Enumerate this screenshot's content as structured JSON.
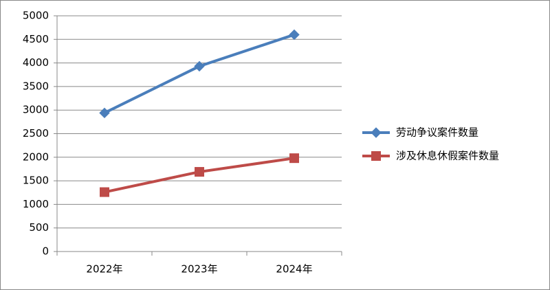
{
  "chart_data": {
    "type": "line",
    "categories": [
      "2022年",
      "2023年",
      "2024年"
    ],
    "series": [
      {
        "name": "劳动争议案件数量",
        "color": "#4a7ebb",
        "marker": "diamond",
        "values": [
          2940,
          3930,
          4600
        ]
      },
      {
        "name": "涉及休息休假案件数量",
        "color": "#be4b48",
        "marker": "square",
        "values": [
          1260,
          1690,
          1980
        ]
      }
    ],
    "ylim": [
      0,
      5000
    ],
    "yticks": [
      0,
      500,
      1000,
      1500,
      2000,
      2500,
      3000,
      3500,
      4000,
      4500,
      5000
    ],
    "grid": true,
    "legend": "right"
  }
}
